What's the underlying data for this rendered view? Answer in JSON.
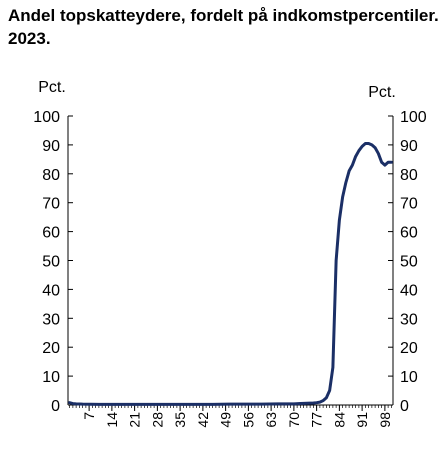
{
  "chart_data": {
    "type": "line",
    "title": "Andel topskatteydere, fordelt på indkomstpercentiler. 2023.",
    "ylabel_left": "Pct.",
    "ylabel_right": "Pct.",
    "xlabel": "",
    "ylim": [
      0,
      100
    ],
    "xlim": [
      1,
      100
    ],
    "y_ticks": [
      "0",
      "10",
      "20",
      "30",
      "40",
      "50",
      "60",
      "70",
      "80",
      "90",
      "100"
    ],
    "x_tick_labels": [
      "7",
      "14",
      "21",
      "28",
      "35",
      "42",
      "49",
      "56",
      "63",
      "70",
      "77",
      "84",
      "91",
      "98"
    ],
    "grid": false,
    "legend": "none",
    "color": "#1b2f66",
    "series": [
      {
        "x": [
          1,
          2,
          3,
          5,
          10,
          15,
          20,
          25,
          30,
          35,
          40,
          45,
          50,
          55,
          60,
          65,
          70,
          72,
          74,
          76,
          77,
          78,
          79,
          80,
          81,
          82,
          83,
          84,
          85,
          86,
          87,
          88,
          89,
          90,
          91,
          92,
          93,
          94,
          95,
          96,
          97,
          98,
          99,
          100
        ],
        "y": [
          0.8,
          0.5,
          0.4,
          0.3,
          0.2,
          0.2,
          0.2,
          0.2,
          0.2,
          0.2,
          0.2,
          0.2,
          0.3,
          0.3,
          0.3,
          0.4,
          0.4,
          0.5,
          0.6,
          0.7,
          0.8,
          1.0,
          1.5,
          2.5,
          5.0,
          13.0,
          50.0,
          64.0,
          72.0,
          77.0,
          81.0,
          83.0,
          86.0,
          88.0,
          89.5,
          90.5,
          90.5,
          90.0,
          89.0,
          87.0,
          84.0,
          83.0,
          84.0,
          84.0
        ]
      }
    ]
  }
}
